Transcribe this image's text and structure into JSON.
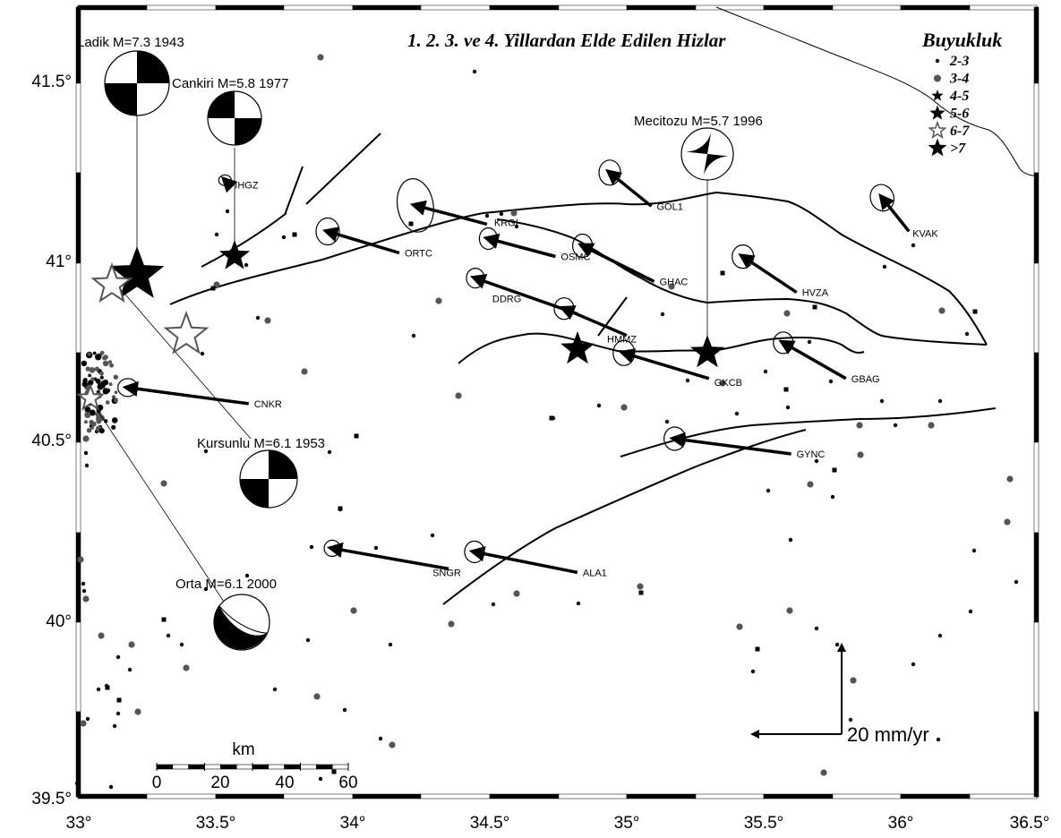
{
  "title": "1. 2. 3. ve 4. Yillardan Elde Edilen Hizlar",
  "axes": {
    "x_ticks": [
      "33°",
      "33.5°",
      "34°",
      "34.5°",
      "35°",
      "35.5°",
      "36°",
      "36.5°"
    ],
    "x_values": [
      33,
      33.5,
      34,
      34.5,
      35,
      35.5,
      36,
      36.5
    ],
    "y_ticks": [
      "41.5°",
      "41°",
      "40.5°",
      "40°",
      "39.5°"
    ],
    "y_values": [
      41.5,
      41,
      40.5,
      40,
      39.5
    ],
    "x_range": [
      33,
      36.5
    ],
    "y_range": [
      39.5,
      41.7
    ]
  },
  "legend": {
    "title": "Buyukluk",
    "items": [
      {
        "label": "2-3",
        "symbol": "dot"
      },
      {
        "label": "3-4",
        "symbol": "gray-dot"
      },
      {
        "label": "4-5",
        "symbol": "small-star"
      },
      {
        "label": "5-6",
        "symbol": "medium-star"
      },
      {
        "label": "6-7",
        "symbol": "open-star"
      },
      {
        "label": ">7",
        "symbol": "large-star"
      }
    ]
  },
  "scale_bar": {
    "unit": "km",
    "labels": [
      "0",
      "20",
      "40",
      "60"
    ]
  },
  "reference_vector": {
    "label": "20 mm/yr",
    "magnitude_mm_yr": 20
  },
  "stations": [
    {
      "name": "KRGI",
      "lon": 34.49,
      "lat": 41.11,
      "vx": -16.0,
      "vy": 4.2
    },
    {
      "name": "GOL1",
      "lon": 35.09,
      "lat": 41.16,
      "vx": -9.3,
      "vy": 7.5
    },
    {
      "name": "KVAK",
      "lon": 36.03,
      "lat": 41.09,
      "vx": -6.0,
      "vy": 7.5
    },
    {
      "name": "IHGZ",
      "lon": 33.55,
      "lat": 41.22,
      "vx": -1.0,
      "vy": 1.0
    },
    {
      "name": "ORTC",
      "lon": 34.17,
      "lat": 41.03,
      "vx": -16.0,
      "vy": 4.8
    },
    {
      "name": "OSMC",
      "lon": 34.74,
      "lat": 41.02,
      "vx": -15.0,
      "vy": 4.0
    },
    {
      "name": "GHAC",
      "lon": 35.1,
      "lat": 40.95,
      "vx": -16.0,
      "vy": 8.0
    },
    {
      "name": "HVZA",
      "lon": 35.62,
      "lat": 40.92,
      "vx": -12.0,
      "vy": 8.0
    },
    {
      "name": "DDRG",
      "lon": 34.82,
      "lat": 40.86,
      "vx": -22.8,
      "vy": 8.0
    },
    {
      "name": "HMMZ",
      "lon": 35.0,
      "lat": 40.8,
      "vx": -14.0,
      "vy": 6.0
    },
    {
      "name": "GKCB",
      "lon": 35.3,
      "lat": 40.68,
      "vx": -19.0,
      "vy": 5.7
    },
    {
      "name": "GBAG",
      "lon": 35.8,
      "lat": 40.68,
      "vx": -14.0,
      "vy": 8.0
    },
    {
      "name": "CNKR",
      "lon": 33.62,
      "lat": 40.61,
      "vx": -27.0,
      "vy": 3.6
    },
    {
      "name": "GYNC",
      "lon": 35.6,
      "lat": 40.47,
      "vx": -26.0,
      "vy": 3.4
    },
    {
      "name": "SNGR",
      "lon": 34.35,
      "lat": 40.15,
      "vx": -26.0,
      "vy": 4.6
    },
    {
      "name": "ALA1",
      "lon": 34.82,
      "lat": 40.14,
      "vx": -23.0,
      "vy": 4.6
    }
  ],
  "earthquakes": [
    {
      "label": "Ladik M=7.3 1943",
      "lon": 33.18,
      "lat": 40.97
    },
    {
      "label": "Cankiri M=5.8 1977",
      "lon": 33.58,
      "lat": 41.02
    },
    {
      "label": "Mecitozu M=5.7 1996",
      "lon": 35.3,
      "lat": 40.75
    },
    {
      "label": "Kursunlu M=6.1 1953",
      "lon": 33.1,
      "lat": 40.95
    },
    {
      "label": "Orta M=6.1 2000",
      "lon": 33.06,
      "lat": 40.62
    }
  ],
  "colors": {
    "ink": "#000000",
    "paper": "#ffffff",
    "gray": "#555555"
  }
}
